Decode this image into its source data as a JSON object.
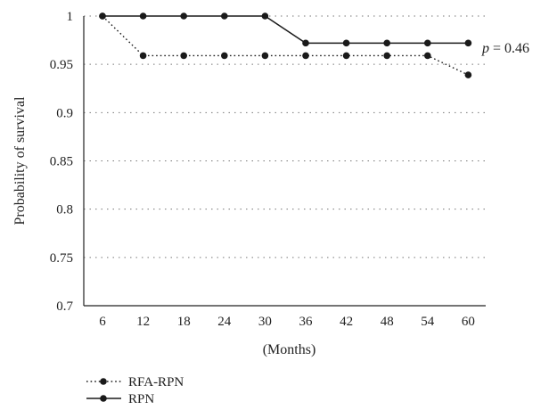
{
  "chart_data": {
    "type": "line",
    "title": "",
    "xlabel": "(Months)",
    "ylabel": "Probability of survival",
    "categories": [
      "6",
      "12",
      "18",
      "24",
      "30",
      "36",
      "42",
      "48",
      "54",
      "60"
    ],
    "ylim": [
      0.7,
      1.0
    ],
    "yticks": [
      "0.7",
      "0.75",
      "0.8",
      "0.85",
      "0.9",
      "0.95",
      "1"
    ],
    "grid": "horizontal dotted",
    "legend_position": "bottom-left",
    "series": [
      {
        "name": "RFA-RPN",
        "style": "dotted",
        "color": "#1a1a1a",
        "values": [
          1.0,
          0.959,
          0.959,
          0.959,
          0.959,
          0.959,
          0.959,
          0.959,
          0.959,
          0.939
        ]
      },
      {
        "name": "RPN",
        "style": "solid",
        "color": "#1a1a1a",
        "values": [
          1.0,
          1.0,
          1.0,
          1.0,
          1.0,
          0.972,
          0.972,
          0.972,
          0.972,
          0.972
        ]
      }
    ],
    "annotation": {
      "text": "p = 0.46",
      "italic_part": "p",
      "rest": " = 0.46"
    }
  }
}
